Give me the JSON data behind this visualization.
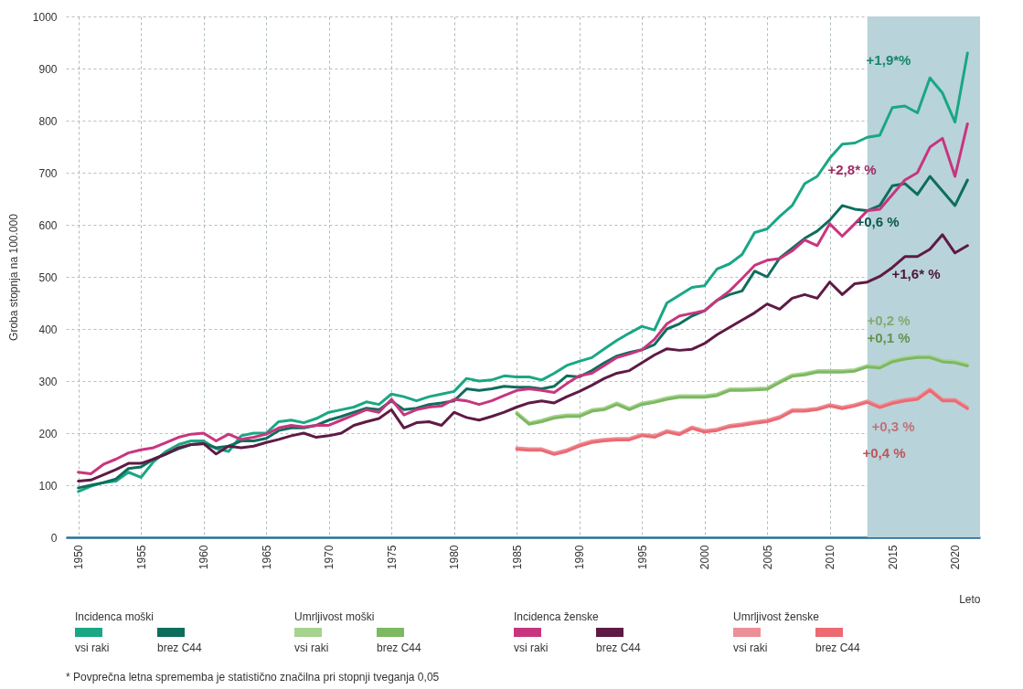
{
  "chart_data": {
    "type": "line",
    "xlabel": "Leto",
    "ylabel": "Groba stopnja na 100.000",
    "x": [
      1950,
      1951,
      1952,
      1953,
      1954,
      1955,
      1956,
      1957,
      1958,
      1959,
      1960,
      1961,
      1962,
      1963,
      1964,
      1965,
      1966,
      1967,
      1968,
      1969,
      1970,
      1971,
      1972,
      1973,
      1974,
      1975,
      1976,
      1977,
      1978,
      1979,
      1980,
      1981,
      1982,
      1983,
      1984,
      1985,
      1986,
      1987,
      1988,
      1989,
      1990,
      1991,
      1992,
      1993,
      1994,
      1995,
      1996,
      1997,
      1998,
      1999,
      2000,
      2001,
      2002,
      2003,
      2004,
      2005,
      2006,
      2007,
      2008,
      2009,
      2010,
      2011,
      2012,
      2013,
      2014,
      2015,
      2016,
      2017,
      2018,
      2019,
      2020,
      2021
    ],
    "xlim": [
      1949,
      2022
    ],
    "xticks": [
      1950,
      1955,
      1960,
      1965,
      1970,
      1975,
      1980,
      1985,
      1990,
      1995,
      2000,
      2005,
      2010,
      2015,
      2020
    ],
    "ylim": [
      0,
      1000
    ],
    "yticks": [
      0,
      100,
      200,
      300,
      400,
      500,
      600,
      700,
      800,
      900,
      {
        "value": 1000,
        "label": "1000"
      }
    ],
    "grid": true,
    "legend": "bottom",
    "line_style": "solid",
    "series": [
      {
        "name": "vsi raki",
        "color": "#19a784",
        "values": [
          88,
          98,
          105,
          108,
          125,
          115,
          145,
          165,
          178,
          185,
          185,
          170,
          165,
          195,
          200,
          200,
          222,
          225,
          220,
          228,
          240,
          245,
          250,
          260,
          255,
          275,
          270,
          262,
          270,
          275,
          280,
          305,
          300,
          302,
          310,
          308,
          308,
          302,
          315,
          330,
          338,
          345,
          362,
          378,
          392,
          405,
          398,
          450,
          465,
          480,
          483,
          515,
          525,
          543,
          585,
          592,
          616,
          637,
          679,
          693,
          728,
          755,
          757,
          768,
          772,
          825,
          828,
          815,
          882,
          853,
          797,
          930
        ]
      },
      {
        "name": "brez C44",
        "color": "#0e6e5c",
        "values": [
          95,
          100,
          105,
          112,
          132,
          135,
          150,
          160,
          170,
          178,
          180,
          172,
          175,
          185,
          185,
          190,
          205,
          210,
          210,
          215,
          225,
          232,
          240,
          248,
          245,
          262,
          245,
          248,
          255,
          258,
          262,
          285,
          282,
          285,
          290,
          288,
          288,
          285,
          290,
          310,
          308,
          320,
          335,
          348,
          355,
          360,
          370,
          400,
          410,
          425,
          435,
          455,
          466,
          473,
          511,
          500,
          536,
          555,
          574,
          588,
          609,
          637,
          630,
          627,
          637,
          675,
          679,
          658,
          693,
          665,
          637,
          686
        ]
      },
      {
        "name": "vsi raki",
        "color": "#a6d38e",
        "x": [
          1985,
          1986,
          1987,
          1988,
          1989,
          1990,
          1991,
          1992,
          1993,
          1994,
          1995,
          1996,
          1997,
          1998,
          1999,
          2000,
          2001,
          2002,
          2003,
          2004,
          2005,
          2006,
          2007,
          2008,
          2009,
          2010,
          2011,
          2012,
          2013,
          2014,
          2015,
          2016,
          2017,
          2018,
          2019,
          2020,
          2021
        ],
        "values": [
          240,
          220,
          225,
          232,
          235,
          235,
          245,
          248,
          258,
          248,
          258,
          262,
          268,
          272,
          272,
          272,
          275,
          285,
          285,
          286,
          287,
          300,
          312,
          315,
          320,
          320,
          320,
          322,
          330,
          328,
          340,
          345,
          348,
          348,
          340,
          338,
          332
        ]
      },
      {
        "name": "brez C44",
        "color": "#7db862",
        "x": [
          1985,
          1986,
          1987,
          1988,
          1989,
          1990,
          1991,
          1992,
          1993,
          1994,
          1995,
          1996,
          1997,
          1998,
          1999,
          2000,
          2001,
          2002,
          2003,
          2004,
          2005,
          2006,
          2007,
          2008,
          2009,
          2010,
          2011,
          2012,
          2013,
          2014,
          2015,
          2016,
          2017,
          2018,
          2019,
          2020,
          2021
        ],
        "values": [
          237,
          217,
          222,
          229,
          232,
          232,
          242,
          245,
          255,
          245,
          255,
          259,
          265,
          269,
          269,
          269,
          272,
          282,
          282,
          283,
          284,
          297,
          309,
          312,
          317,
          317,
          317,
          319,
          327,
          325,
          337,
          342,
          345,
          345,
          337,
          335,
          329
        ]
      },
      {
        "name": "vsi raki",
        "color": "#c8357f",
        "values": [
          125,
          122,
          140,
          150,
          162,
          168,
          172,
          182,
          192,
          198,
          200,
          185,
          198,
          188,
          192,
          198,
          210,
          215,
          212,
          215,
          215,
          225,
          235,
          245,
          240,
          265,
          235,
          245,
          250,
          252,
          265,
          262,
          255,
          262,
          272,
          282,
          285,
          282,
          278,
          295,
          310,
          315,
          330,
          345,
          352,
          360,
          380,
          410,
          425,
          430,
          435,
          455,
          473,
          497,
          522,
          532,
          535,
          550,
          571,
          560,
          602,
          578,
          602,
          627,
          630,
          658,
          686,
          700,
          749,
          766,
          693,
          794
        ]
      },
      {
        "name": "brez C44",
        "color": "#5e1a45",
        "values": [
          108,
          110,
          120,
          130,
          142,
          142,
          150,
          160,
          172,
          178,
          180,
          160,
          175,
          172,
          175,
          182,
          188,
          195,
          200,
          192,
          195,
          200,
          215,
          222,
          228,
          245,
          210,
          220,
          222,
          215,
          240,
          230,
          225,
          232,
          240,
          250,
          258,
          262,
          258,
          270,
          280,
          292,
          305,
          315,
          320,
          335,
          350,
          362,
          359,
          361,
          372,
          389,
          403,
          417,
          431,
          448,
          438,
          459,
          466,
          459,
          490,
          466,
          487,
          490,
          501,
          518,
          539,
          539,
          553,
          581,
          546,
          560
        ]
      },
      {
        "name": "vsi raki",
        "color": "#ec9098",
        "x": [
          1985,
          1986,
          1987,
          1988,
          1989,
          1990,
          1991,
          1992,
          1993,
          1994,
          1995,
          1996,
          1997,
          1998,
          1999,
          2000,
          2001,
          2002,
          2003,
          2004,
          2005,
          2006,
          2007,
          2008,
          2009,
          2010,
          2011,
          2012,
          2013,
          2014,
          2015,
          2016,
          2017,
          2018,
          2019,
          2020,
          2021
        ],
        "values": [
          172,
          170,
          170,
          162,
          168,
          178,
          185,
          188,
          190,
          190,
          198,
          195,
          205,
          200,
          212,
          205,
          208,
          215,
          218,
          222,
          225,
          232,
          245,
          245,
          248,
          255,
          250,
          255,
          262,
          252,
          260,
          265,
          268,
          285,
          265,
          265,
          250
        ]
      },
      {
        "name": "brez C44",
        "color": "#ec6a72",
        "x": [
          1985,
          1986,
          1987,
          1988,
          1989,
          1990,
          1991,
          1992,
          1993,
          1994,
          1995,
          1996,
          1997,
          1998,
          1999,
          2000,
          2001,
          2002,
          2003,
          2004,
          2005,
          2006,
          2007,
          2008,
          2009,
          2010,
          2011,
          2012,
          2013,
          2014,
          2015,
          2016,
          2017,
          2018,
          2019,
          2020,
          2021
        ],
        "values": [
          169,
          167,
          167,
          159,
          165,
          175,
          182,
          185,
          187,
          187,
          195,
          192,
          202,
          197,
          209,
          202,
          205,
          212,
          215,
          219,
          222,
          229,
          242,
          242,
          245,
          252,
          247,
          252,
          259,
          249,
          257,
          262,
          265,
          282,
          262,
          262,
          247
        ]
      }
    ],
    "bands": [
      {
        "axis": "x",
        "from": 2013,
        "to": 2022,
        "color": "#b9d3da"
      }
    ],
    "annotations": [
      "+1,9*%",
      "+0,6 %",
      "+0,2 %",
      "+0,1 %",
      "+2,8* %",
      "+1,6* %",
      "+0,3 %",
      "+0,4 %",
      "Incidenca moški",
      "Umrljivost moški",
      "Incidenca ženske",
      "Umrljivost ženske",
      "* Povprečna letna sprememba je statistično značilna pri stopnji tveganja 0,05"
    ]
  }
}
